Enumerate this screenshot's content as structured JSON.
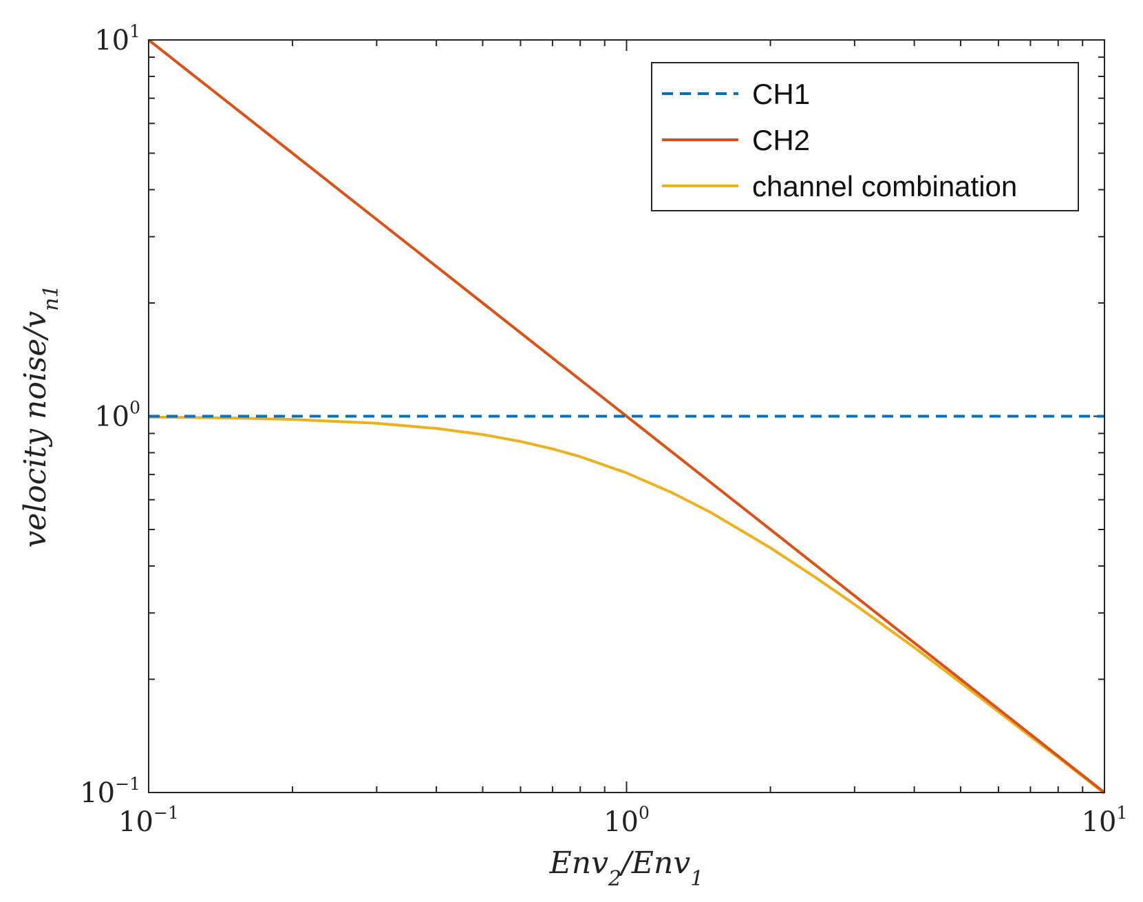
{
  "chart_data": {
    "type": "line",
    "x_scale": "log",
    "y_scale": "log",
    "xlim": [
      0.1,
      10
    ],
    "ylim": [
      0.1,
      10
    ],
    "xlabel": {
      "parts": [
        {
          "text": "Env"
        },
        {
          "text": "2",
          "sub": true
        },
        {
          "text": "/Env"
        },
        {
          "text": "1",
          "sub": true
        }
      ]
    },
    "ylabel": {
      "parts": [
        {
          "text": "velocity noise/v"
        },
        {
          "text": "n1",
          "sub": true
        }
      ]
    },
    "x_ticks": [
      {
        "value": 0.1,
        "base": "10",
        "exp": "−1"
      },
      {
        "value": 1,
        "base": "10",
        "exp": "0"
      },
      {
        "value": 10,
        "base": "10",
        "exp": "1"
      }
    ],
    "y_ticks": [
      {
        "value": 0.1,
        "base": "10",
        "exp": "−1"
      },
      {
        "value": 1,
        "base": "10",
        "exp": "0"
      },
      {
        "value": 10,
        "base": "10",
        "exp": "1"
      }
    ],
    "grid": false,
    "legend_position": "top-right",
    "series": [
      {
        "name": "CH1",
        "style": "dashed",
        "color": "#0072BD",
        "x": [
          0.1,
          0.2,
          0.5,
          1,
          2,
          5,
          10
        ],
        "y": [
          1,
          1,
          1,
          1,
          1,
          1,
          1
        ]
      },
      {
        "name": "CH2",
        "style": "solid",
        "color": "#D95319",
        "x": [
          0.1,
          0.2,
          0.5,
          1,
          2,
          5,
          10
        ],
        "y": [
          10,
          5,
          2,
          1,
          0.5,
          0.2,
          0.1
        ]
      },
      {
        "name": "channel combination",
        "style": "solid",
        "color": "#EDB120",
        "x": [
          0.1,
          0.15,
          0.2,
          0.3,
          0.4,
          0.5,
          0.6,
          0.7,
          0.8,
          1,
          1.25,
          1.5,
          2,
          2.5,
          3,
          4,
          5,
          6,
          7,
          8,
          10
        ],
        "y": [
          0.995,
          0.989,
          0.981,
          0.958,
          0.928,
          0.894,
          0.857,
          0.819,
          0.781,
          0.707,
          0.625,
          0.555,
          0.447,
          0.371,
          0.316,
          0.243,
          0.196,
          0.164,
          0.141,
          0.124,
          0.0995
        ]
      }
    ]
  }
}
